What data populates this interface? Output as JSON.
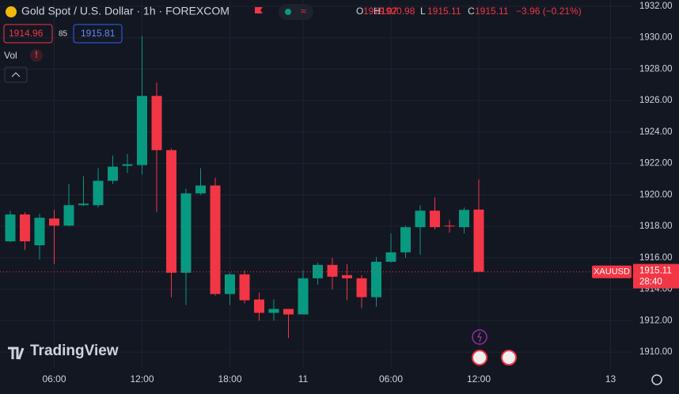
{
  "chart_data": {
    "type": "candlestick",
    "title": "Gold Spot / U.S. Dollar · 1h · FOREXCOM",
    "ohlc_legend": [
      {
        "label": "O",
        "value": 1919.07
      },
      {
        "label": "H",
        "value": 1920.98
      },
      {
        "label": "L",
        "value": 1915.11
      },
      {
        "label": "C",
        "value": 1915.11
      }
    ],
    "change": "−3.96 (−0.21%)",
    "bid": 1914.96,
    "spread": 85,
    "ask": 1915.81,
    "volume_label": "Vol",
    "symbol_tag": "XAUUSD",
    "last_price": 1915.11,
    "countdown": "28:40",
    "brand": "TradingView",
    "categories": [
      null,
      null,
      null,
      "06:00",
      null,
      null,
      null,
      null,
      null,
      "12:00",
      null,
      null,
      null,
      null,
      null,
      "18:00",
      null,
      null,
      null,
      null,
      "11",
      null,
      null,
      null,
      null,
      null,
      "06:00",
      null,
      null,
      null,
      null,
      null,
      "12:00",
      null,
      null,
      null,
      null,
      null,
      null,
      null,
      null,
      "13",
      null
    ],
    "open": [
      1917.05,
      1918.76,
      1916.8,
      1918.5,
      1918.05,
      1919.35,
      1919.35,
      1920.9,
      1921.85,
      1921.9,
      1926.3,
      1922.85,
      1915.05,
      1920.1,
      1920.6,
      1913.7,
      1914.95,
      1913.35,
      1912.5,
      1912.75,
      1912.4,
      1914.7,
      1915.55,
      1914.9,
      1914.7,
      1913.5,
      1915.75,
      1916.35,
      1917.95,
      1919.0,
      1918.05,
      1917.95,
      1919.07,
      null,
      null,
      null,
      null,
      null,
      null,
      null,
      null,
      null,
      null
    ],
    "high": [
      1919.0,
      1918.9,
      1918.8,
      1919.05,
      1920.7,
      1921.2,
      1921.7,
      1922.5,
      1922.6,
      1930.1,
      1927.15,
      1922.95,
      1920.4,
      1921.7,
      1921.1,
      1915.05,
      1915.2,
      1913.8,
      1913.35,
      1912.75,
      1915.2,
      1915.7,
      1916.0,
      1915.6,
      1914.9,
      1916.05,
      1917.55,
      1918.05,
      1919.35,
      1919.85,
      1918.4,
      1919.2,
      1920.98,
      null,
      null,
      null,
      null,
      null,
      null,
      null,
      null,
      null,
      null
    ],
    "low": [
      1917.0,
      1916.5,
      1915.9,
      1915.6,
      1918.0,
      1919.3,
      1919.2,
      1920.7,
      1921.4,
      1921.3,
      1918.9,
      1913.5,
      1913.0,
      1920.0,
      1913.6,
      1913.0,
      1913.1,
      1912.0,
      1912.0,
      1910.9,
      1912.4,
      1914.3,
      1914.0,
      1913.3,
      1912.8,
      1912.9,
      1915.7,
      1916.0,
      1916.2,
      1917.8,
      1917.6,
      1917.55,
      1915.11,
      null,
      null,
      null,
      null,
      null,
      null,
      null,
      null,
      null,
      null
    ],
    "close": [
      1918.76,
      1917.05,
      1918.55,
      1918.05,
      1919.35,
      1919.45,
      1920.9,
      1921.8,
      1921.95,
      1926.3,
      1922.85,
      1915.05,
      1920.1,
      1920.6,
      1913.7,
      1914.95,
      1913.3,
      1912.5,
      1912.75,
      1912.4,
      1914.7,
      1915.55,
      1914.8,
      1914.7,
      1913.5,
      1915.75,
      1916.35,
      1917.95,
      1919.0,
      1917.95,
      1918.0,
      1919.05,
      1915.11,
      null,
      null,
      null,
      null,
      null,
      null,
      null,
      null,
      null,
      null
    ],
    "up_color": "#089981",
    "down_color": "#f23645",
    "ylim": [
      1909,
      1932.4
    ],
    "yticks": [
      {
        "value": 1910,
        "label": "1910.00"
      },
      {
        "value": 1912,
        "label": "1912.00"
      },
      {
        "value": 1914,
        "label": "1914.00"
      },
      {
        "value": 1916,
        "label": "1916.00"
      },
      {
        "value": 1918,
        "label": "1918.00"
      },
      {
        "value": 1920,
        "label": "1920.00"
      },
      {
        "value": 1922,
        "label": "1922.00"
      },
      {
        "value": 1924,
        "label": "1924.00"
      },
      {
        "value": 1926,
        "label": "1926.00"
      },
      {
        "value": 1928,
        "label": "1928.00"
      },
      {
        "value": 1930,
        "label": "1930.00"
      },
      {
        "value": 1932,
        "label": "1932.00"
      }
    ],
    "grid": true
  }
}
